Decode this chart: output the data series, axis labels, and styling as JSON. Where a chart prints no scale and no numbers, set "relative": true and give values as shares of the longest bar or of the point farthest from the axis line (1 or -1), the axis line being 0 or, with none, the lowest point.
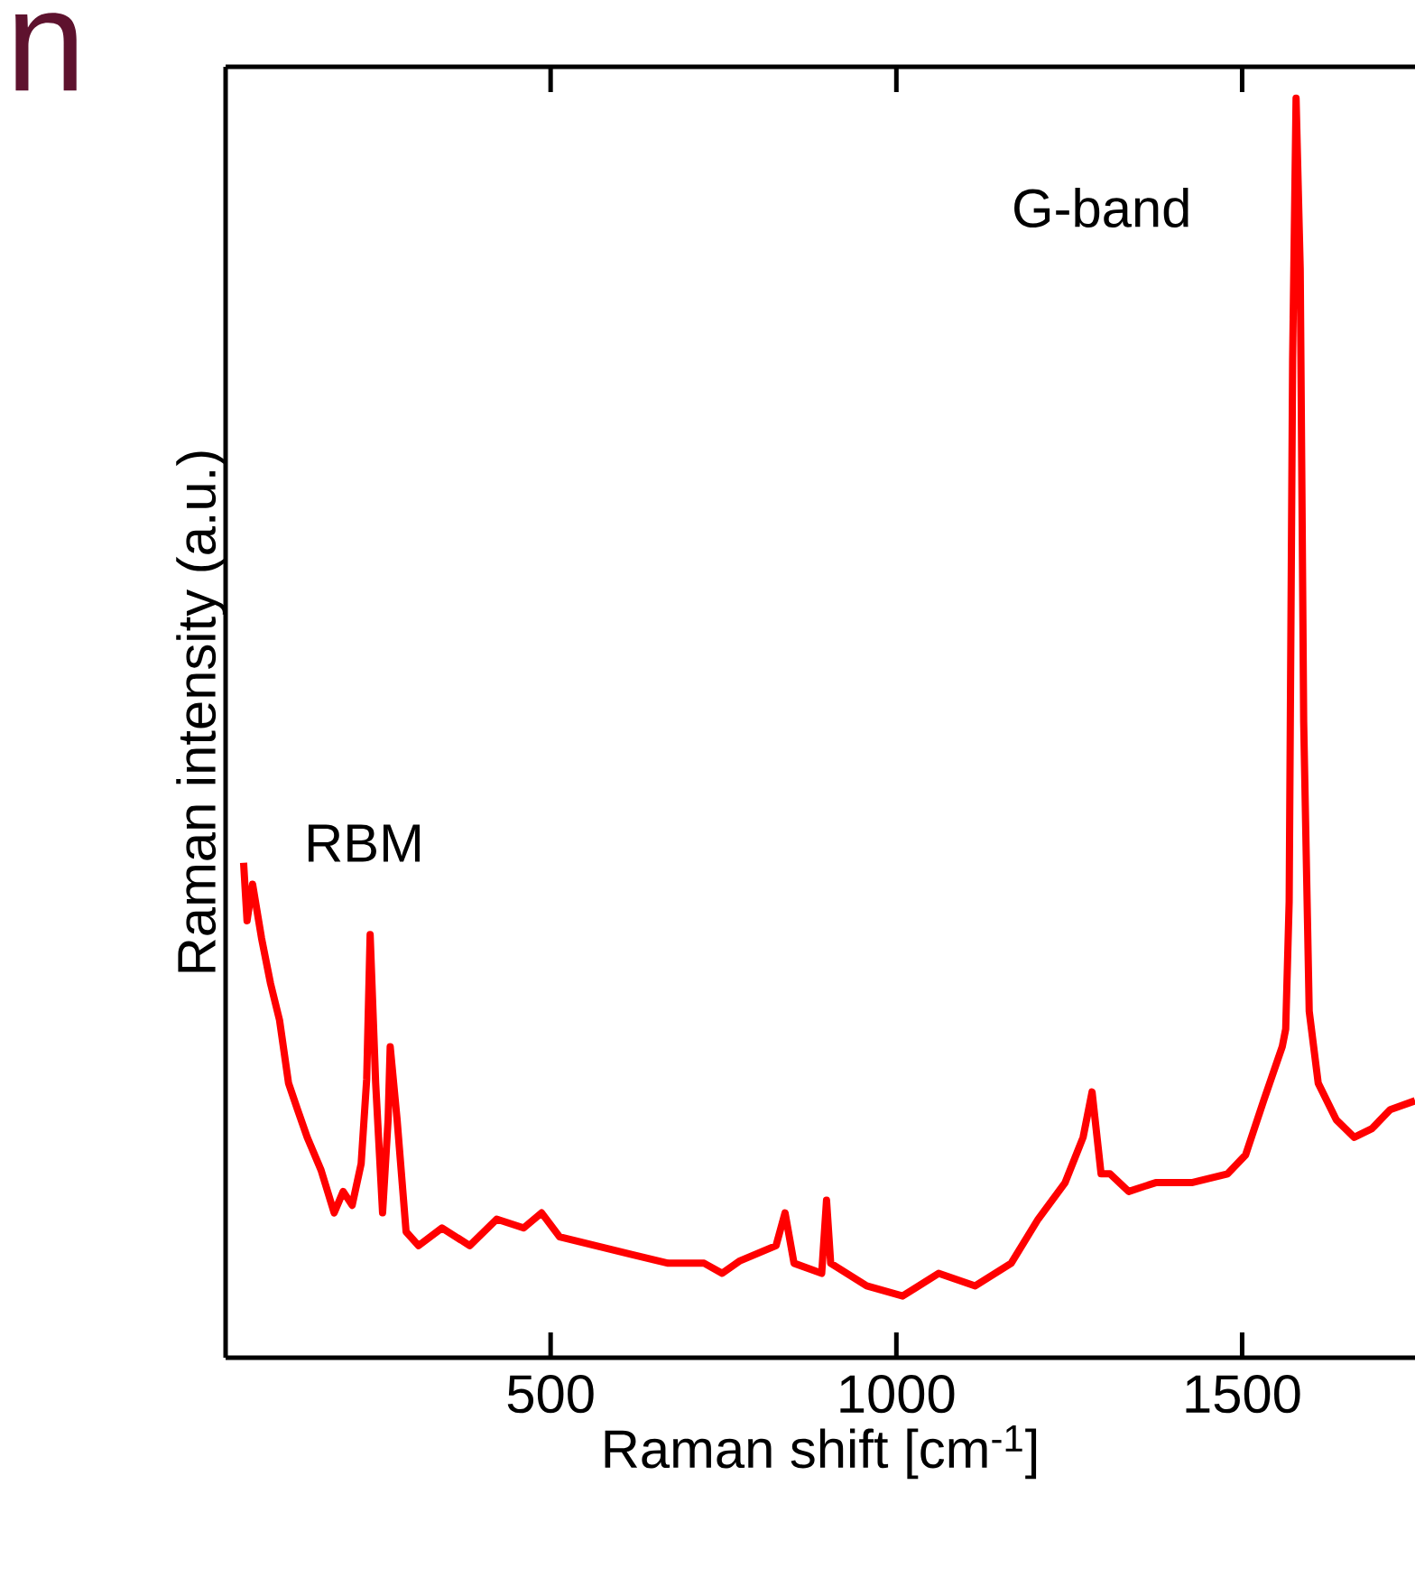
{
  "chart_data": {
    "type": "line",
    "relative": true,
    "xlabel": "Raman shift [cm$^{-1}$]",
    "ylabel": "Raman intensity (a.u.)",
    "xlim": [
      30,
      1750
    ],
    "xticks": [
      500,
      1000,
      1500
    ],
    "annotations": [
      "RBM",
      "G-band",
      "n"
    ],
    "series": [
      {
        "color": "#ff0000",
        "x": [
          56,
          61,
          69,
          82,
          95,
          108,
          121,
          134,
          148,
          168,
          187,
          200,
          213,
          226,
          234,
          239,
          247,
          257,
          265,
          268,
          278,
          291,
          309,
          343,
          383,
          422,
          461,
          487,
          513,
          565,
          617,
          670,
          722,
          748,
          774,
          826,
          839,
          852,
          892,
          899,
          905,
          957,
          1009,
          1061,
          1114,
          1166,
          1205,
          1244,
          1270,
          1283,
          1296,
          1309,
          1336,
          1375,
          1427,
          1479,
          1505,
          1531,
          1558,
          1563,
          1568,
          1573,
          1578,
          1584,
          1589,
          1597,
          1610,
          1636,
          1662,
          1688,
          1714,
          1750
        ],
        "values": [
          0.393,
          0.347,
          0.376,
          0.333,
          0.297,
          0.268,
          0.218,
          0.197,
          0.175,
          0.149,
          0.115,
          0.132,
          0.121,
          0.154,
          0.221,
          0.336,
          0.218,
          0.115,
          0.189,
          0.247,
          0.189,
          0.1,
          0.089,
          0.103,
          0.089,
          0.11,
          0.103,
          0.115,
          0.096,
          0.089,
          0.082,
          0.075,
          0.075,
          0.067,
          0.077,
          0.089,
          0.115,
          0.075,
          0.067,
          0.125,
          0.075,
          0.057,
          0.049,
          0.067,
          0.057,
          0.075,
          0.11,
          0.139,
          0.175,
          0.211,
          0.146,
          0.146,
          0.132,
          0.139,
          0.139,
          0.146,
          0.161,
          0.204,
          0.247,
          0.261,
          0.362,
          0.792,
          1,
          0.864,
          0.505,
          0.275,
          0.218,
          0.189,
          0.175,
          0.182,
          0.197,
          0.204
        ]
      }
    ]
  }
}
